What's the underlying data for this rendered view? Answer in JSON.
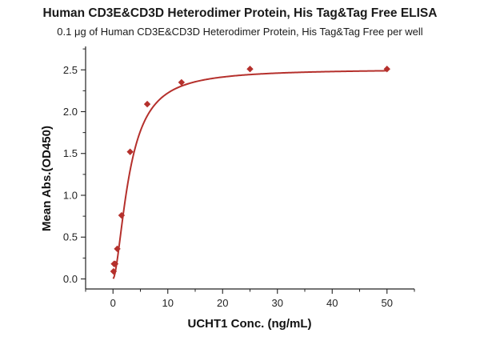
{
  "chart_data": {
    "type": "scatter",
    "title": "Human CD3E&CD3D Heterodimer Protein, His Tag&Tag Free ELISA",
    "subtitle": "0.1 μg of Human CD3E&CD3D Heterodimer Protein, His Tag&Tag Free per well",
    "xlabel": "UCHT1 Conc. (ng/mL)",
    "ylabel": "Mean Abs.(OD450)",
    "xlim": [
      -5,
      55
    ],
    "ylim": [
      -0.12,
      2.78
    ],
    "xticks": [
      "0",
      "10",
      "20",
      "30",
      "40",
      "50"
    ],
    "yticks": [
      "0.0",
      "0.5",
      "1.0",
      "1.5",
      "2.0",
      "2.5"
    ],
    "xtick_values": [
      0,
      10,
      20,
      30,
      40,
      50
    ],
    "ytick_values": [
      0,
      0.5,
      1.0,
      1.5,
      2.0,
      2.5
    ],
    "grid": false,
    "series": [
      {
        "points": [
          {
            "x": 0.098,
            "y": 0.09
          },
          {
            "x": 0.195,
            "y": 0.18
          },
          {
            "x": 0.39,
            "y": 0.18
          },
          {
            "x": 0.78,
            "y": 0.36
          },
          {
            "x": 1.56,
            "y": 0.76
          },
          {
            "x": 3.125,
            "y": 1.52
          },
          {
            "x": 6.25,
            "y": 2.09
          },
          {
            "x": 12.5,
            "y": 2.35
          },
          {
            "x": 25,
            "y": 2.51
          },
          {
            "x": 50,
            "y": 2.51
          }
        ],
        "fit": {
          "bottom": 0.0,
          "top": 2.51,
          "ec50": 3.0,
          "hill": 1.7,
          "x_start": 0.05,
          "x_end": 50
        },
        "color": "#b5302c"
      }
    ]
  }
}
